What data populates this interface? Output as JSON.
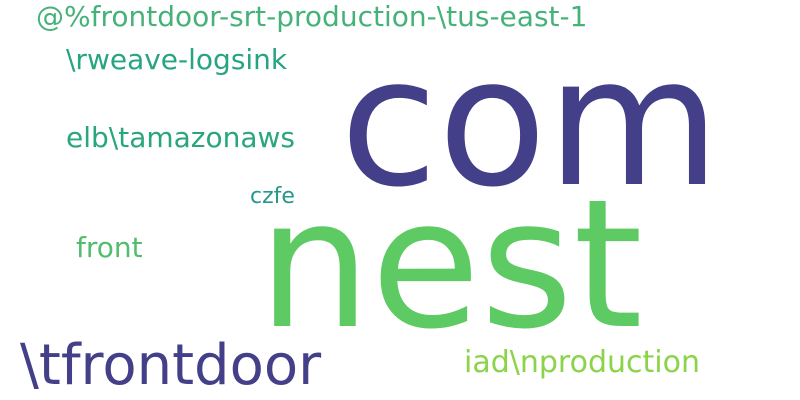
{
  "words": {
    "com": {
      "text": "com",
      "color": "#433f88"
    },
    "nest": {
      "text": "nest",
      "color": "#5dca63"
    },
    "frontdoor_srt": {
      "text": "@%frontdoor-srt-production-\\tus-east-1",
      "color": "#46b27a"
    },
    "rweave": {
      "text": "\\rweave-logsink",
      "color": "#27a582"
    },
    "elb": {
      "text": "elb\\tamazonaws",
      "color": "#2aa67f"
    },
    "czfe": {
      "text": "czfe",
      "color": "#24998b"
    },
    "front": {
      "text": "front",
      "color": "#52be6d"
    },
    "tfrontdoor": {
      "text": "\\tfrontdoor",
      "color": "#433f88"
    },
    "iad": {
      "text": "iad\\nproduction",
      "color": "#8bd44a"
    }
  }
}
